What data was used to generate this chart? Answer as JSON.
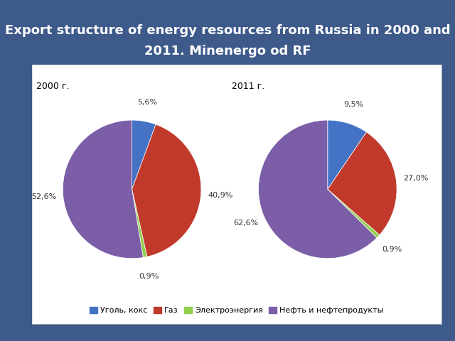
{
  "title_line1": "Export structure of energy resources from Russia in 2000 and",
  "title_line2": "2011. Minenergo od RF",
  "title_color": "#ffffff",
  "title_fontsize": 13,
  "bg_color": "#3d5a8a",
  "chart_bg": "#ffffff",
  "label_2000": "2000 г.",
  "label_2011": "2011 г.",
  "categories": [
    "Уголь, кокс",
    "Газ",
    "Электроэнергия",
    "Нефть и нефтепродукты"
  ],
  "colors": [
    "#4472c4",
    "#c0392b",
    "#92d050",
    "#7b5ea7"
  ],
  "values_2000": [
    5.6,
    40.9,
    0.9,
    52.6
  ],
  "values_2011": [
    9.5,
    27.0,
    0.9,
    62.6
  ],
  "labels_2000": [
    "5,6%",
    "40,9%",
    "0,9%",
    "52,6%"
  ],
  "labels_2011": [
    "9,5%",
    "27,0%",
    "0,9%",
    "62,6%"
  ],
  "label_fontsize": 8,
  "year_fontsize": 9,
  "legend_fontsize": 8
}
